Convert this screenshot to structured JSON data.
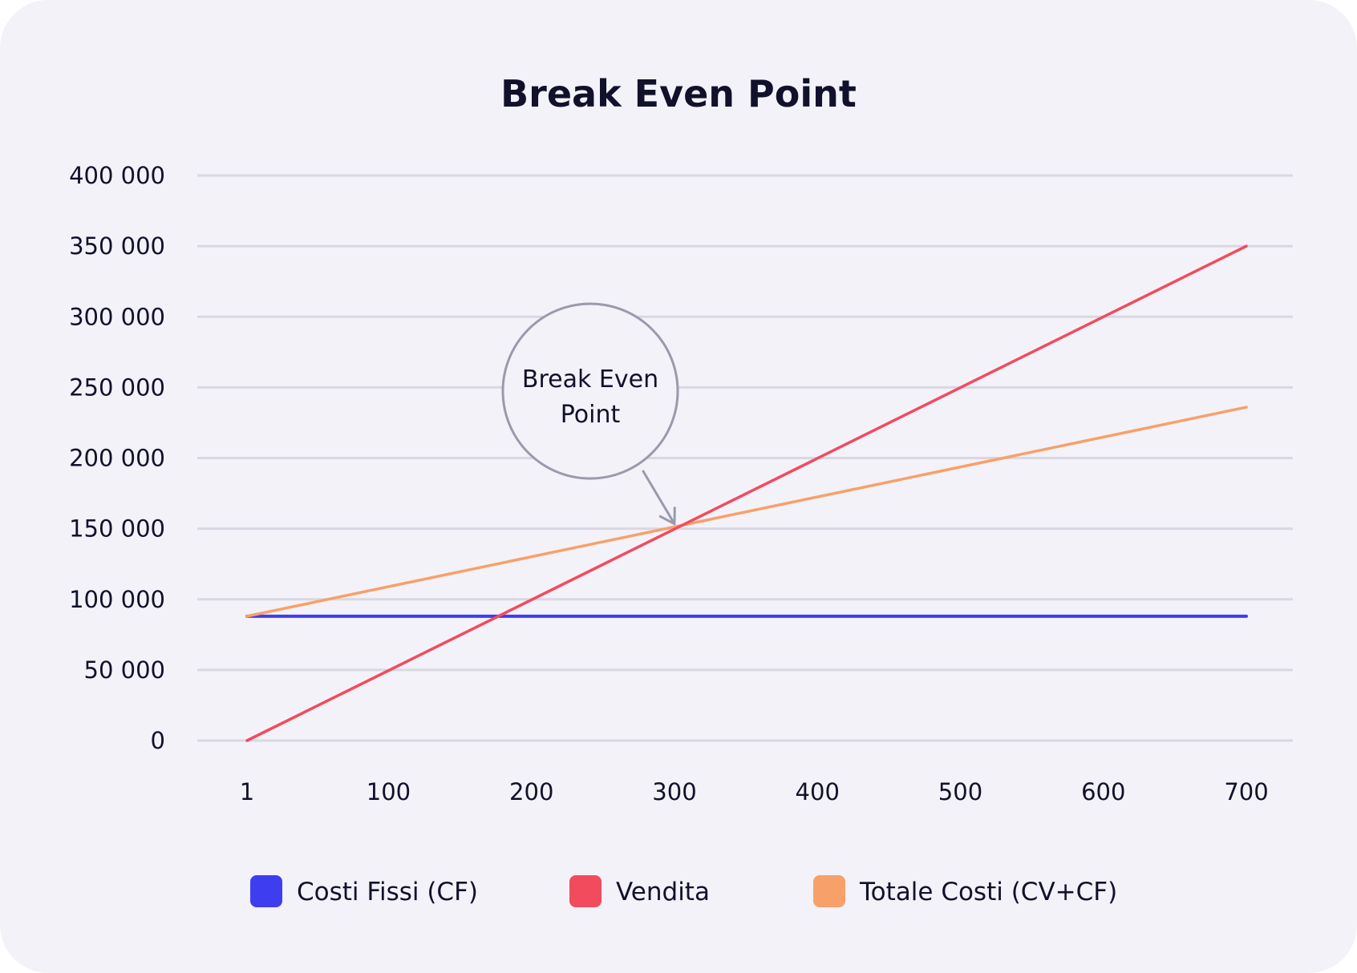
{
  "chart_data": {
    "type": "line",
    "title": "Break Even Point",
    "xlabel": "",
    "ylabel": "",
    "x": [
      1,
      700
    ],
    "x_ticks": [
      "1",
      "100",
      "200",
      "300",
      "400",
      "500",
      "600",
      "700"
    ],
    "x_tick_values": [
      1,
      100,
      200,
      300,
      400,
      500,
      600,
      700
    ],
    "y_ticks": [
      "0",
      "50 000",
      "100 000",
      "150 000",
      "200 000",
      "250 000",
      "300 000",
      "350 000",
      "400 000"
    ],
    "y_tick_values": [
      0,
      50000,
      100000,
      150000,
      200000,
      250000,
      300000,
      350000,
      400000
    ],
    "ylim": [
      0,
      400000
    ],
    "xlim": [
      1,
      700
    ],
    "grid": true,
    "legend_position": "bottom",
    "series": [
      {
        "name": "Costi Fissi (CF)",
        "color": "#3e3ef0",
        "values": [
          88000,
          88000
        ]
      },
      {
        "name": "Vendita",
        "color": "#f24b5e",
        "values": [
          0,
          350000
        ]
      },
      {
        "name": "Totale Costi (CV+CF)",
        "color": "#f8a06a",
        "values": [
          88000,
          236000
        ]
      }
    ],
    "annotation": {
      "text_line1": "Break Even",
      "text_line2": "Point",
      "x": 300,
      "y": 150000
    }
  }
}
